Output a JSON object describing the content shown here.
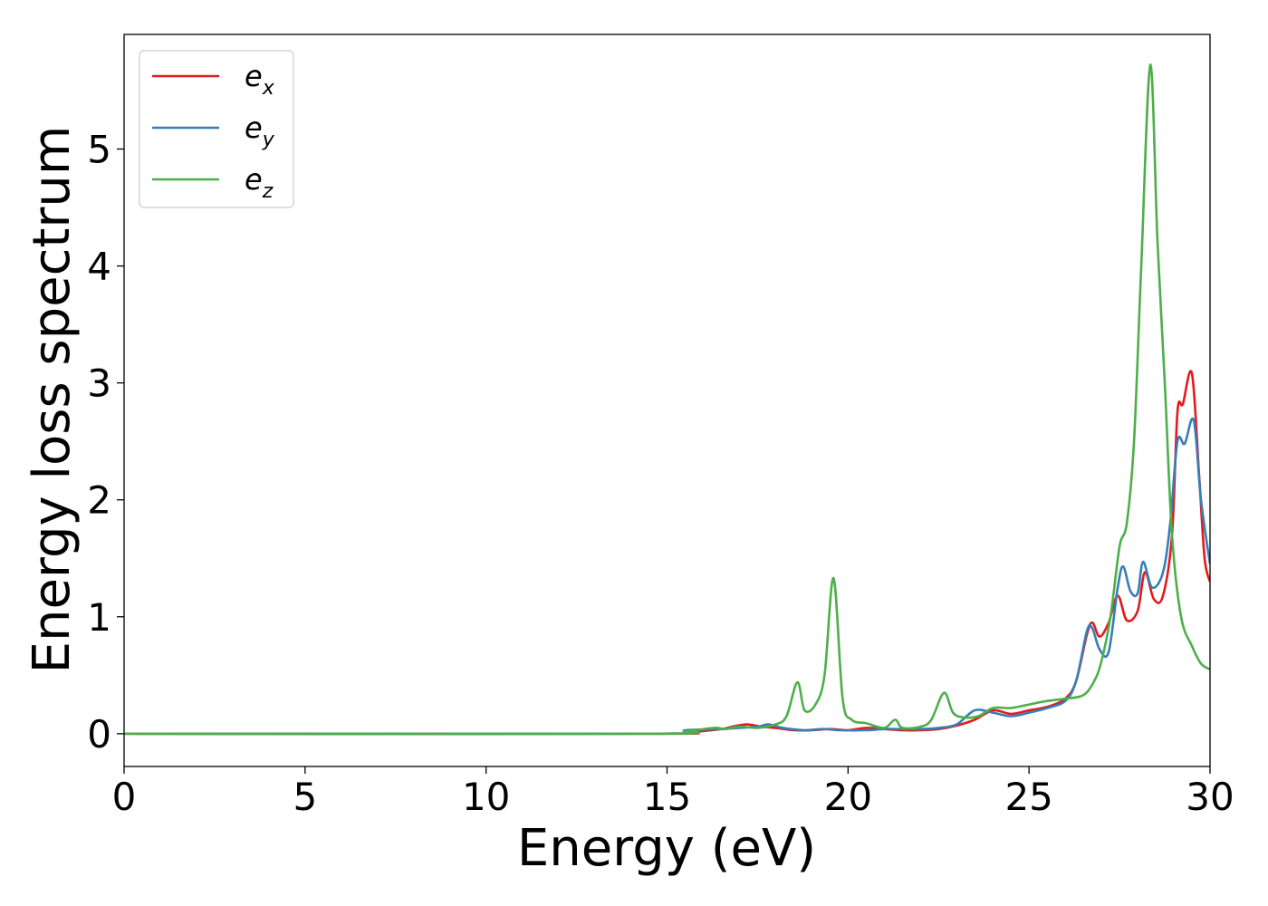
{
  "chart_data": {
    "type": "line",
    "title": "",
    "xlabel": "Energy (eV)",
    "ylabel": "Energy loss spectrum",
    "xlim": [
      0,
      30
    ],
    "ylim": [
      -0.28,
      5.98
    ],
    "xticks": [
      0,
      5,
      10,
      15,
      20,
      25,
      30
    ],
    "yticks": [
      0,
      1,
      2,
      3,
      4,
      5
    ],
    "grid": false,
    "legend_position": "top-left",
    "series": [
      {
        "name_base": "e",
        "name_sub": "x",
        "color": "#e41a1c",
        "x": [
          0,
          14.5,
          15.5,
          16.5,
          16.8,
          17.2,
          17.6,
          18.0,
          18.5,
          19.0,
          19.5,
          20.0,
          20.5,
          21.0,
          21.5,
          22.0,
          22.5,
          23.0,
          23.5,
          24.0,
          24.5,
          25.0,
          25.5,
          26.0,
          26.3,
          26.6,
          26.75,
          26.95,
          27.2,
          27.45,
          27.7,
          28.0,
          28.2,
          28.45,
          28.7,
          28.95,
          29.1,
          29.25,
          29.5,
          29.7,
          29.85,
          30.0
        ],
        "y": [
          0.0,
          0.0,
          0.01,
          0.04,
          0.06,
          0.08,
          0.06,
          0.05,
          0.03,
          0.03,
          0.04,
          0.03,
          0.05,
          0.04,
          0.03,
          0.03,
          0.04,
          0.07,
          0.12,
          0.2,
          0.17,
          0.2,
          0.23,
          0.3,
          0.45,
          0.85,
          0.95,
          0.83,
          0.95,
          1.18,
          0.97,
          1.05,
          1.38,
          1.15,
          1.18,
          1.7,
          2.75,
          2.82,
          3.08,
          2.2,
          1.5,
          1.3
        ]
      },
      {
        "name_base": "e",
        "name_sub": "y",
        "color": "#377eb8",
        "x": [
          0,
          14.5,
          15.5,
          16.5,
          17.0,
          17.5,
          17.8,
          18.2,
          18.8,
          19.3,
          19.8,
          20.5,
          21.0,
          21.5,
          22.0,
          22.5,
          23.0,
          23.5,
          24.0,
          24.5,
          25.0,
          25.5,
          26.0,
          26.3,
          26.6,
          26.75,
          26.95,
          27.2,
          27.45,
          27.6,
          27.8,
          28.0,
          28.15,
          28.4,
          28.7,
          28.9,
          29.1,
          29.3,
          29.55,
          29.75,
          30.0
        ],
        "y": [
          0.0,
          0.0,
          0.03,
          0.04,
          0.05,
          0.06,
          0.08,
          0.05,
          0.03,
          0.04,
          0.03,
          0.03,
          0.04,
          0.04,
          0.04,
          0.05,
          0.08,
          0.2,
          0.18,
          0.15,
          0.18,
          0.22,
          0.28,
          0.45,
          0.88,
          0.9,
          0.72,
          0.7,
          1.25,
          1.43,
          1.22,
          1.2,
          1.47,
          1.25,
          1.38,
          1.8,
          2.5,
          2.48,
          2.68,
          2.0,
          1.45
        ]
      },
      {
        "name_base": "e",
        "name_sub": "z",
        "color": "#4daf4a",
        "x": [
          0,
          14.5,
          15.5,
          16.3,
          16.6,
          17.0,
          17.5,
          18.0,
          18.3,
          18.6,
          18.8,
          19.1,
          19.35,
          19.6,
          19.85,
          20.1,
          20.5,
          21.0,
          21.3,
          21.5,
          22.0,
          22.3,
          22.65,
          22.9,
          23.2,
          23.6,
          24.0,
          24.5,
          25.0,
          25.5,
          26.0,
          26.5,
          26.8,
          27.0,
          27.25,
          27.5,
          27.7,
          27.9,
          28.1,
          28.35,
          28.55,
          28.75,
          28.95,
          29.2,
          29.5,
          29.75,
          30.0
        ],
        "y": [
          0.0,
          0.0,
          0.02,
          0.05,
          0.04,
          0.06,
          0.05,
          0.08,
          0.15,
          0.44,
          0.2,
          0.25,
          0.5,
          1.33,
          0.3,
          0.12,
          0.09,
          0.05,
          0.12,
          0.05,
          0.06,
          0.12,
          0.35,
          0.18,
          0.14,
          0.15,
          0.22,
          0.22,
          0.25,
          0.28,
          0.3,
          0.33,
          0.45,
          0.62,
          1.0,
          1.6,
          1.8,
          2.5,
          4.0,
          5.72,
          4.2,
          3.0,
          1.7,
          1.0,
          0.75,
          0.6,
          0.55
        ]
      }
    ]
  }
}
